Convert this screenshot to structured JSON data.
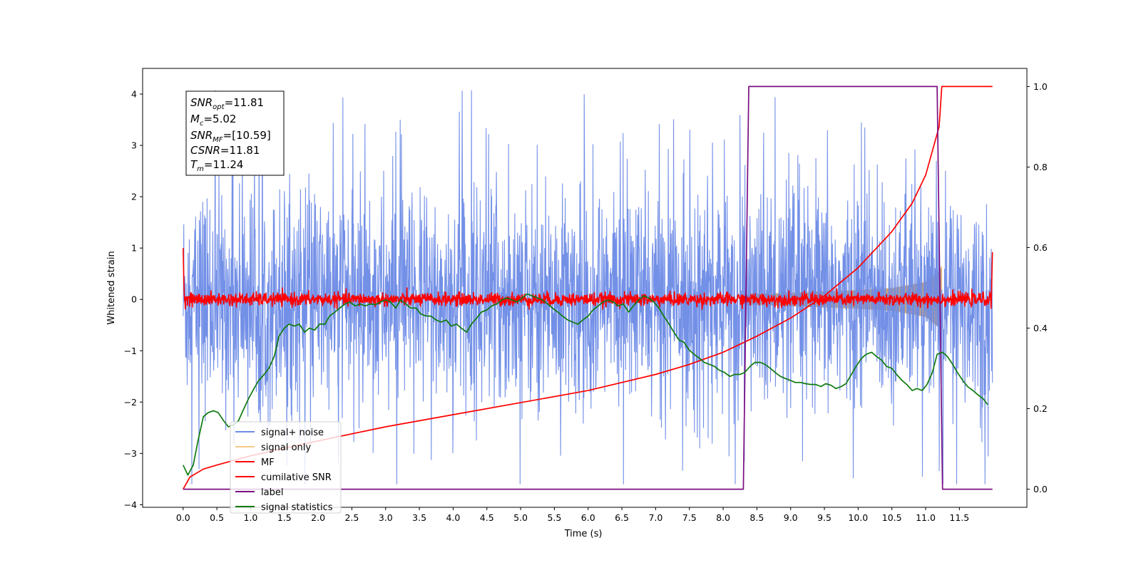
{
  "chart_data": {
    "type": "line",
    "xlabel": "Time (s)",
    "ylabel": "Whitened strain",
    "xlim": [
      -0.6,
      12.5
    ],
    "ylim": [
      -4.05,
      4.5
    ],
    "ylim_right": [
      -0.045,
      1.045
    ],
    "x_ticks": [
      "0.0",
      "0.5",
      "1.0",
      "1.5",
      "2.0",
      "2.5",
      "3.0",
      "3.5",
      "4.0",
      "4.5",
      "5.0",
      "5.5",
      "6.0",
      "6.5",
      "7.0",
      "7.5",
      "8.0",
      "8.5",
      "9.0",
      "9.5",
      "10.0",
      "10.5",
      "11.0",
      "11.5"
    ],
    "y_ticks": [
      "4",
      "3",
      "2",
      "1",
      "0",
      "−1",
      "−2",
      "−3",
      "−4"
    ],
    "y_ticks_right": [
      "1.0",
      "0.8",
      "0.6",
      "0.4",
      "0.2",
      "0.0"
    ],
    "grid": false,
    "legend_position": "lower-left",
    "info_box": {
      "snr_opt": "=11.81",
      "mc": "=5.02",
      "snr_mf": "=[10.59]",
      "csnr": "=11.81",
      "tm": "=11.24"
    },
    "series": [
      {
        "name": "signal+ noise",
        "color": "#6c8ae6",
        "axis": "left",
        "kind": "noise",
        "t_start": 0.0,
        "t_end": 11.99,
        "std": 1.05,
        "peak_range": [
          -3.6,
          4.15
        ]
      },
      {
        "name": "signal only",
        "color": "#f5c888",
        "axis": "left",
        "kind": "chirp_envelope",
        "fill_color": "#c09a73",
        "envelope": {
          "t": [
            8.3,
            9.0,
            10.0,
            10.5,
            11.0,
            11.2,
            11.24
          ],
          "amp": [
            0.1,
            0.13,
            0.18,
            0.22,
            0.34,
            0.55,
            0.65
          ]
        }
      },
      {
        "name": "MF",
        "color": "#ff0000",
        "axis": "left",
        "kind": "noise",
        "t_start": 0.0,
        "t_end": 11.99,
        "std": 0.065,
        "start_value": 1.0,
        "end_value": 0.92
      },
      {
        "name": "cumilative SNR",
        "color": "#ff0000",
        "axis": "right",
        "kind": "line",
        "x": [
          0.0,
          0.1,
          0.3,
          0.5,
          1.0,
          2.0,
          3.0,
          4.0,
          5.0,
          6.0,
          7.0,
          7.5,
          8.0,
          8.5,
          9.0,
          9.5,
          10.0,
          10.5,
          10.8,
          11.0,
          11.2,
          11.24,
          11.99
        ],
        "values": [
          0.0,
          0.03,
          0.05,
          0.06,
          0.083,
          0.12,
          0.155,
          0.185,
          0.215,
          0.245,
          0.285,
          0.31,
          0.34,
          0.38,
          0.425,
          0.48,
          0.55,
          0.64,
          0.71,
          0.78,
          0.9,
          1.0,
          1.0
        ]
      },
      {
        "name": "label",
        "color": "#7b0e82",
        "axis": "right",
        "kind": "line",
        "x": [
          0.0,
          8.3,
          8.38,
          11.17,
          11.25,
          11.99
        ],
        "values": [
          0.0,
          0.0,
          1.0,
          1.0,
          0.0,
          0.0
        ]
      },
      {
        "name": "signal statistics",
        "color": "#0f7a0f",
        "axis": "right",
        "kind": "line",
        "x": [
          0.0,
          0.07,
          0.15,
          0.22,
          0.3,
          0.37,
          0.45,
          0.52,
          0.6,
          0.67,
          0.75,
          0.82,
          0.9,
          0.97,
          1.05,
          1.12,
          1.2,
          1.27,
          1.35,
          1.42,
          1.5,
          1.57,
          1.65,
          1.72,
          1.8,
          1.87,
          1.95,
          2.02,
          2.1,
          2.17,
          2.25,
          2.32,
          2.4,
          2.47,
          2.55,
          2.62,
          2.7,
          2.77,
          2.85,
          2.92,
          3.0,
          3.07,
          3.15,
          3.22,
          3.3,
          3.37,
          3.45,
          3.52,
          3.6,
          3.67,
          3.75,
          3.82,
          3.9,
          3.97,
          4.05,
          4.12,
          4.2,
          4.27,
          4.35,
          4.42,
          4.5,
          4.57,
          4.65,
          4.72,
          4.8,
          4.87,
          4.95,
          5.02,
          5.1,
          5.17,
          5.25,
          5.32,
          5.4,
          5.47,
          5.55,
          5.62,
          5.7,
          5.77,
          5.85,
          5.92,
          6.0,
          6.07,
          6.15,
          6.22,
          6.3,
          6.37,
          6.45,
          6.52,
          6.6,
          6.67,
          6.75,
          6.82,
          6.9,
          6.97,
          7.05,
          7.12,
          7.2,
          7.27,
          7.35,
          7.42,
          7.5,
          7.57,
          7.65,
          7.72,
          7.8,
          7.87,
          7.95,
          8.02,
          8.1,
          8.17,
          8.25,
          8.32,
          8.4,
          8.47,
          8.55,
          8.62,
          8.7,
          8.77,
          8.85,
          8.92,
          9.0,
          9.07,
          9.15,
          9.22,
          9.3,
          9.37,
          9.45,
          9.52,
          9.6,
          9.67,
          9.75,
          9.82,
          9.9,
          9.97,
          10.05,
          10.12,
          10.2,
          10.27,
          10.35,
          10.42,
          10.5,
          10.57,
          10.65,
          10.72,
          10.8,
          10.87,
          10.95,
          11.02,
          11.1,
          11.17,
          11.25,
          11.32,
          11.4,
          11.47,
          11.55,
          11.62,
          11.7,
          11.77,
          11.85,
          11.92
        ],
        "values": [
          0.06,
          0.035,
          0.06,
          0.12,
          0.18,
          0.19,
          0.195,
          0.19,
          0.17,
          0.155,
          0.16,
          0.17,
          0.2,
          0.225,
          0.25,
          0.27,
          0.285,
          0.3,
          0.33,
          0.38,
          0.4,
          0.41,
          0.405,
          0.41,
          0.39,
          0.4,
          0.395,
          0.41,
          0.41,
          0.43,
          0.44,
          0.45,
          0.46,
          0.465,
          0.455,
          0.46,
          0.455,
          0.46,
          0.458,
          0.465,
          0.47,
          0.465,
          0.45,
          0.47,
          0.46,
          0.45,
          0.45,
          0.435,
          0.43,
          0.43,
          0.42,
          0.415,
          0.42,
          0.405,
          0.41,
          0.4,
          0.39,
          0.41,
          0.425,
          0.44,
          0.445,
          0.455,
          0.46,
          0.47,
          0.475,
          0.47,
          0.465,
          0.475,
          0.485,
          0.48,
          0.475,
          0.47,
          0.46,
          0.45,
          0.44,
          0.43,
          0.42,
          0.415,
          0.41,
          0.42,
          0.43,
          0.445,
          0.455,
          0.465,
          0.47,
          0.465,
          0.455,
          0.46,
          0.44,
          0.455,
          0.47,
          0.48,
          0.475,
          0.465,
          0.45,
          0.43,
          0.41,
          0.39,
          0.37,
          0.365,
          0.345,
          0.335,
          0.325,
          0.315,
          0.31,
          0.305,
          0.295,
          0.29,
          0.28,
          0.285,
          0.285,
          0.29,
          0.305,
          0.315,
          0.315,
          0.31,
          0.3,
          0.29,
          0.28,
          0.275,
          0.27,
          0.265,
          0.265,
          0.262,
          0.26,
          0.26,
          0.255,
          0.262,
          0.258,
          0.25,
          0.255,
          0.262,
          0.285,
          0.305,
          0.325,
          0.335,
          0.34,
          0.33,
          0.32,
          0.305,
          0.3,
          0.285,
          0.27,
          0.26,
          0.245,
          0.25,
          0.245,
          0.26,
          0.29,
          0.335,
          0.34,
          0.33,
          0.31,
          0.29,
          0.27,
          0.255,
          0.245,
          0.235,
          0.225,
          0.21
        ]
      }
    ]
  }
}
